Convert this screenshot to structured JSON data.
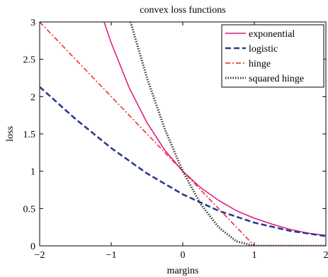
{
  "chart_data": {
    "type": "line",
    "title": "convex loss functions",
    "xlabel": "margins",
    "ylabel": "loss",
    "xlim": [
      -2,
      2
    ],
    "ylim": [
      0,
      3
    ],
    "xticks": [
      -2,
      -1,
      0,
      1,
      2
    ],
    "xtick_labels": [
      "−2",
      "−1",
      "0",
      "1",
      "2"
    ],
    "yticks": [
      0,
      0.5,
      1,
      1.5,
      2,
      2.5,
      3
    ],
    "ytick_labels": [
      "0",
      "0.5",
      "1",
      "1.5",
      "2",
      "2.5",
      "3"
    ],
    "grid": false,
    "legend_position": "top-right",
    "series": [
      {
        "name": "exponential",
        "color": "#e0157d",
        "style": "solid",
        "x": [
          -1.1,
          -1.0,
          -0.75,
          -0.5,
          -0.25,
          0.0,
          0.25,
          0.5,
          0.75,
          1.0,
          1.25,
          1.5,
          1.75,
          2.0
        ],
        "y": [
          3.0,
          2.72,
          2.12,
          1.65,
          1.28,
          1.0,
          0.78,
          0.61,
          0.47,
          0.37,
          0.29,
          0.22,
          0.17,
          0.14
        ]
      },
      {
        "name": "logistic",
        "color": "#2b3a8f",
        "style": "dashed",
        "x": [
          -2.0,
          -1.5,
          -1.0,
          -0.5,
          0.0,
          0.5,
          1.0,
          1.5,
          2.0
        ],
        "y": [
          2.13,
          1.7,
          1.31,
          0.97,
          0.69,
          0.47,
          0.31,
          0.2,
          0.13
        ]
      },
      {
        "name": "hinge",
        "color": "#e8242b",
        "style": "dashdot",
        "x": [
          -2.0,
          1.0,
          2.0
        ],
        "y": [
          3.0,
          0.0,
          0.0
        ]
      },
      {
        "name": "squared hinge",
        "color": "#3a3a3a",
        "style": "dotted",
        "x": [
          -0.73,
          -0.5,
          -0.25,
          0.0,
          0.25,
          0.5,
          0.75,
          1.0,
          2.0
        ],
        "y": [
          3.0,
          2.25,
          1.56,
          1.0,
          0.56,
          0.25,
          0.06,
          0.0,
          0.0
        ]
      }
    ]
  }
}
